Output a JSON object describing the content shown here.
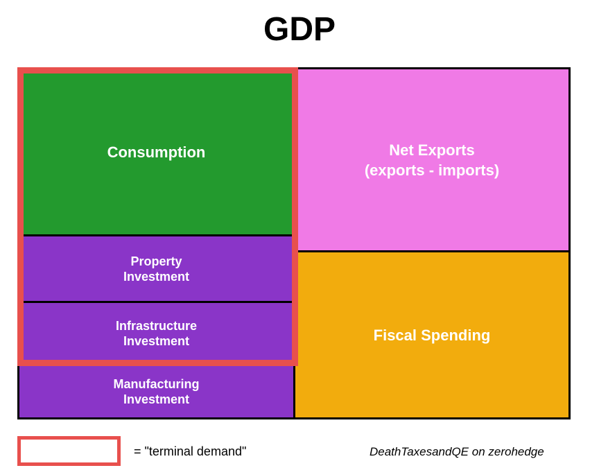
{
  "title": "GDP",
  "colors": {
    "consumption": "#239a2e",
    "investment": "#8a35c8",
    "net_exports": "#f07ae6",
    "fiscal_spending": "#f2ac0d",
    "terminal_demand_outline": "#e8504d",
    "border": "#000000",
    "block_text": "#ffffff"
  },
  "blocks": {
    "consumption": "Consumption",
    "property_investment": "Property\nInvestment",
    "infrastructure_investment": "Infrastructure\nInvestment",
    "manufacturing_investment": "Manufacturing\nInvestment",
    "net_exports": "Net Exports\n(exports - imports)",
    "fiscal_spending": "Fiscal Spending"
  },
  "legend": {
    "text": "= \"terminal demand\""
  },
  "credit": "DeathTaxesandQE on zerohedge"
}
